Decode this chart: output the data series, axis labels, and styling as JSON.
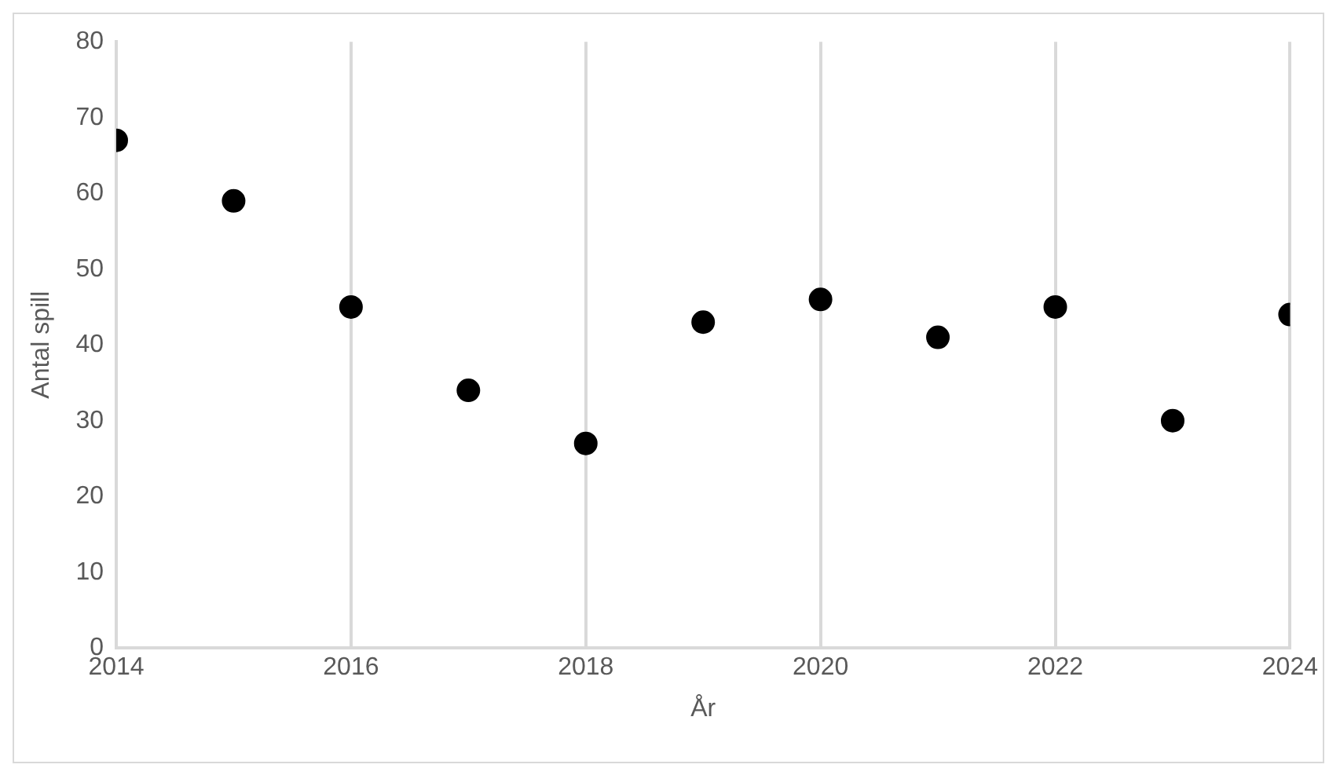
{
  "chart_data": {
    "type": "scatter",
    "xlabel": "År",
    "ylabel": "Antal spill",
    "x": [
      2014,
      2015,
      2016,
      2017,
      2018,
      2019,
      2020,
      2021,
      2022,
      2023,
      2024
    ],
    "series": [
      {
        "color": "#000000",
        "values": [
          67,
          59,
          45,
          34,
          27,
          43,
          46,
          41,
          45,
          30,
          44
        ]
      }
    ],
    "xlim": [
      2014,
      2024
    ],
    "xticks": [
      2014,
      2016,
      2018,
      2020,
      2022,
      2024
    ],
    "ylim": [
      0,
      80
    ],
    "yticks": [
      0,
      10,
      20,
      30,
      40,
      50,
      60,
      70,
      80
    ],
    "grid": "x",
    "legend": false,
    "marker": "circle"
  }
}
